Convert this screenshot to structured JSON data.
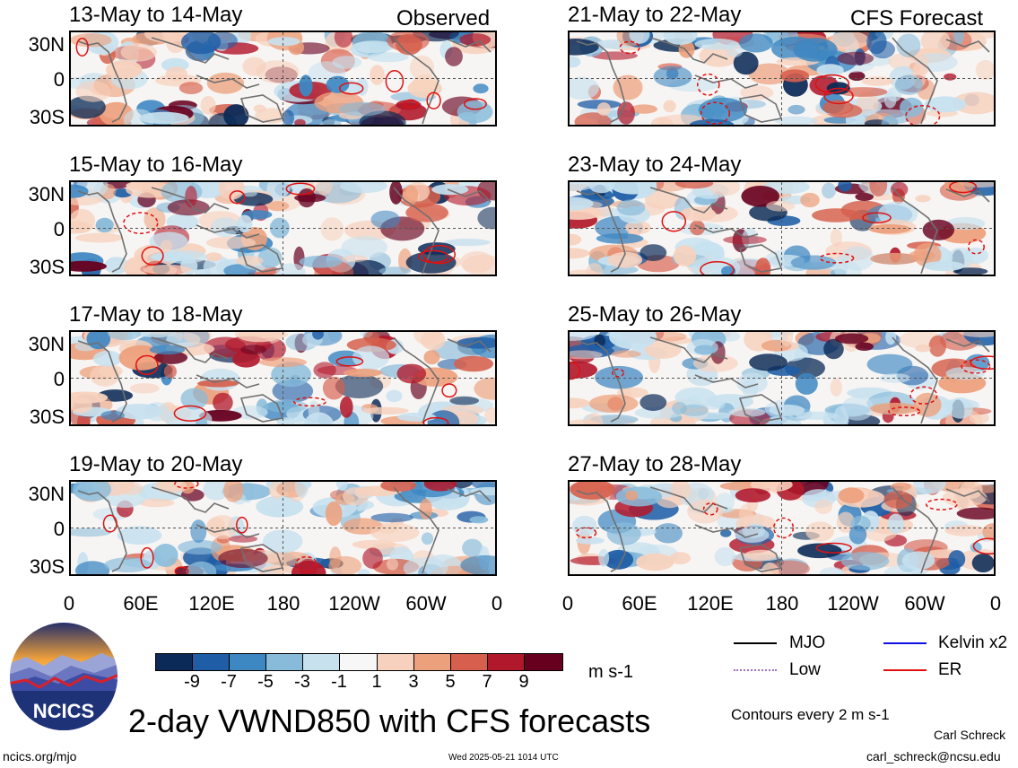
{
  "header": {
    "left": "Observed",
    "right": "CFS Forecast"
  },
  "panels_left": [
    {
      "title": "13-May to 14-May"
    },
    {
      "title": "15-May to 16-May"
    },
    {
      "title": "17-May to 18-May"
    },
    {
      "title": "19-May to 20-May"
    }
  ],
  "panels_right": [
    {
      "title": "21-May to 22-May"
    },
    {
      "title": "23-May to 24-May"
    },
    {
      "title": "25-May to 26-May"
    },
    {
      "title": "27-May to 28-May"
    }
  ],
  "lat_ticks": [
    "30N",
    "0",
    "30S"
  ],
  "lon_ticks": [
    "0",
    "60E",
    "120E",
    "180",
    "120W",
    "60W",
    "0"
  ],
  "colorbar": {
    "labels": [
      "-9",
      "-7",
      "-5",
      "-3",
      "-1",
      "1",
      "3",
      "5",
      "7",
      "9"
    ],
    "colors": [
      "#0b2a57",
      "#1f5ea6",
      "#3d87c2",
      "#88bbda",
      "#c7e1ef",
      "#f7f7f7",
      "#f7d1bd",
      "#eda07c",
      "#d6604d",
      "#b2182b",
      "#67001f"
    ],
    "unit": "m s-1"
  },
  "legend": {
    "mjo": {
      "label": "MJO",
      "color": "#000000"
    },
    "kelvin": {
      "label": "Kelvin x2",
      "color": "#1010e0"
    },
    "low": {
      "label": "Low",
      "color": "#a070c0"
    },
    "er": {
      "label": "ER",
      "color": "#e01010"
    },
    "contours": "Contours every 2 m s-1"
  },
  "logo_text": "NCICS",
  "main_title": "2-day VWND850 with CFS forecasts",
  "footer": {
    "url": "ncics.org/mjo",
    "timestamp": "Wed 2025-05-21 1014 UTC",
    "author": "Carl Schreck",
    "email": "carl_schreck@ncsu.edu"
  }
}
